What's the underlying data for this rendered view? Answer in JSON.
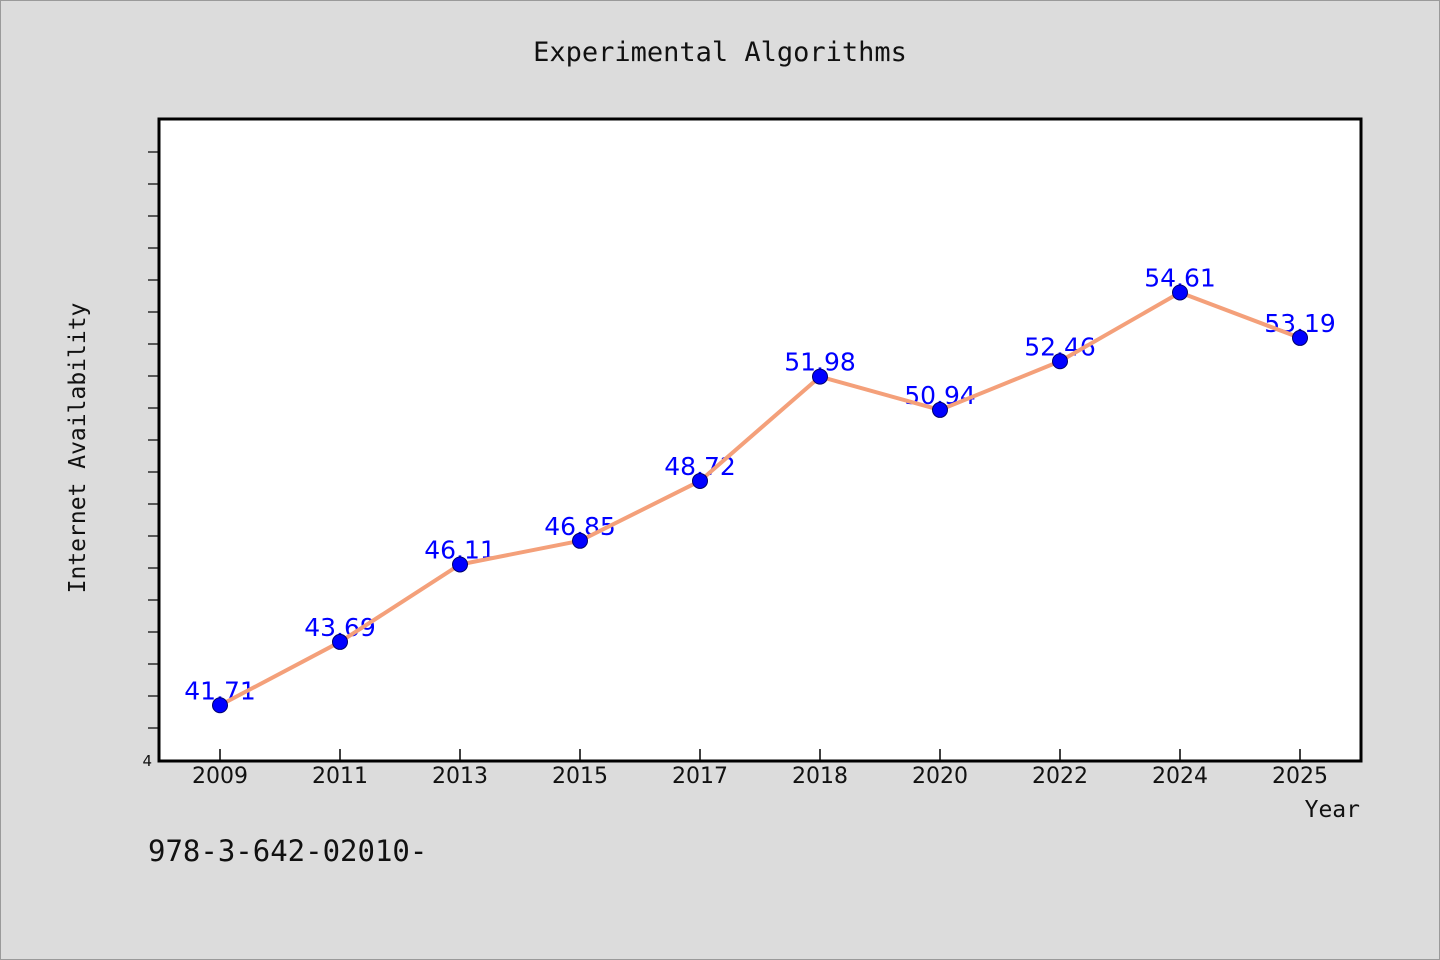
{
  "footnote": "978-3-642-02010-",
  "chart_data": {
    "type": "line",
    "title": "Experimental Algorithms",
    "xlabel": "Year",
    "ylabel": "Internet Availability",
    "categories": [
      "2009",
      "2011",
      "2013",
      "2015",
      "2017",
      "2018",
      "2020",
      "2022",
      "2024",
      "2025"
    ],
    "series": [
      {
        "values": [
          41.71,
          43.69,
          46.11,
          46.85,
          48.72,
          51.98,
          50.94,
          52.46,
          54.61,
          53.19
        ],
        "data_labels": [
          "41.71",
          "43.69",
          "46.11",
          "46.85",
          "48.72",
          "51.98",
          "50.94",
          "52.46",
          "54.61",
          "53.19"
        ],
        "line_color": "#f4a07a",
        "marker_color": "#0000ff"
      }
    ],
    "yticks": [
      "4"
    ],
    "ylim": [
      40,
      60
    ],
    "grid": false,
    "legend": "none",
    "background": "#dcdcdc",
    "plot_background": "#ffffff"
  }
}
